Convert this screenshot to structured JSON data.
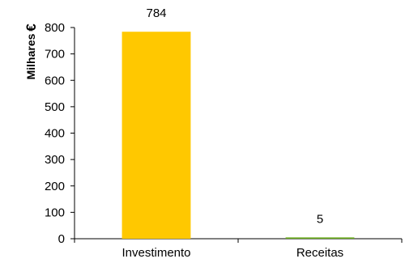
{
  "chart_data": {
    "type": "bar",
    "title": "",
    "categories": [
      "Investimento",
      "Receitas"
    ],
    "values": [
      784,
      5
    ],
    "data_labels": [
      "784",
      "5"
    ],
    "colors": [
      "#FFC800",
      "#6AAB1E"
    ],
    "ylabel": "Milhares",
    "yunit": "€",
    "ylim": [
      0,
      800
    ],
    "yticks": [
      0,
      100,
      200,
      300,
      400,
      500,
      600,
      700,
      800
    ],
    "grid": false,
    "legend": "none"
  }
}
